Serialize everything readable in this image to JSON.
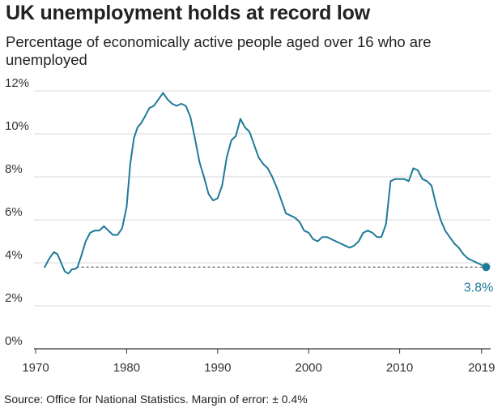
{
  "header": {
    "title": "UK unemployment holds at record low",
    "subtitle": "Percentage of economically active people aged over 16 who are unemployed"
  },
  "footer": {
    "source": "Source: Office for National Statistics. Margin of error: ± 0.4%"
  },
  "colors": {
    "line": "#1f7a99",
    "grid": "#d9d9d9",
    "axis": "#333333",
    "reference": "#333333"
  },
  "chart_data": {
    "type": "line",
    "title": "UK unemployment holds at record low",
    "subtitle": "Percentage of economically active people aged over 16 who are unemployed",
    "xlabel": "",
    "ylabel": "",
    "xlim": [
      1970,
      2020
    ],
    "ylim": [
      0,
      12
    ],
    "x_ticks": [
      1970,
      1980,
      1990,
      2000,
      2010,
      2019
    ],
    "x_tick_labels": [
      "1970",
      "1980",
      "1990",
      "2000",
      "2010",
      "2019"
    ],
    "y_ticks": [
      0,
      2,
      4,
      6,
      8,
      10,
      12
    ],
    "y_tick_labels": [
      "0%",
      "2%",
      "4%",
      "6%",
      "8%",
      "10%",
      "12%"
    ],
    "grid": "horizontal",
    "legend": "none",
    "series": [
      {
        "x": [
          1971.0,
          1971.5,
          1972.0,
          1972.4,
          1972.8,
          1973.2,
          1973.6,
          1974.0,
          1974.3,
          1974.6,
          1975.0,
          1975.5,
          1976.0,
          1976.5,
          1977.0,
          1977.5,
          1978.0,
          1978.5,
          1979.0,
          1979.5,
          1980.0,
          1980.4,
          1980.8,
          1981.2,
          1981.6,
          1982.0,
          1982.5,
          1983.0,
          1983.5,
          1984.0,
          1984.5,
          1985.0,
          1985.5,
          1986.0,
          1986.5,
          1987.0,
          1987.5,
          1988.0,
          1988.5,
          1989.0,
          1989.5,
          1990.0,
          1990.5,
          1991.0,
          1991.5,
          1992.0,
          1992.5,
          1993.0,
          1993.5,
          1994.0,
          1994.5,
          1995.0,
          1995.5,
          1996.0,
          1996.5,
          1997.0,
          1997.5,
          1998.0,
          1998.5,
          1999.0,
          1999.5,
          2000.0,
          2000.5,
          2001.0,
          2001.5,
          2002.0,
          2002.5,
          2003.0,
          2003.5,
          2004.0,
          2004.5,
          2005.0,
          2005.5,
          2006.0,
          2006.5,
          2007.0,
          2007.5,
          2008.0,
          2008.5,
          2009.0,
          2009.5,
          2010.0,
          2010.5,
          2011.0,
          2011.5,
          2012.0,
          2012.5,
          2013.0,
          2013.5,
          2014.0,
          2014.5,
          2015.0,
          2015.5,
          2016.0,
          2016.5,
          2017.0,
          2017.5,
          2018.0,
          2018.5,
          2019.0,
          2019.5
        ],
        "y": [
          3.8,
          4.2,
          4.5,
          4.4,
          4.0,
          3.6,
          3.5,
          3.7,
          3.7,
          3.8,
          4.3,
          5.0,
          5.4,
          5.5,
          5.5,
          5.7,
          5.5,
          5.3,
          5.3,
          5.6,
          6.6,
          8.6,
          9.8,
          10.3,
          10.5,
          10.8,
          11.2,
          11.3,
          11.6,
          11.9,
          11.6,
          11.4,
          11.3,
          11.4,
          11.3,
          10.8,
          9.8,
          8.7,
          8.0,
          7.2,
          6.9,
          7.0,
          7.6,
          8.9,
          9.7,
          9.9,
          10.7,
          10.3,
          10.1,
          9.5,
          8.9,
          8.6,
          8.4,
          8.0,
          7.5,
          6.9,
          6.3,
          6.2,
          6.1,
          5.9,
          5.5,
          5.4,
          5.1,
          5.0,
          5.2,
          5.2,
          5.1,
          5.0,
          4.9,
          4.8,
          4.7,
          4.8,
          5.0,
          5.4,
          5.5,
          5.4,
          5.2,
          5.2,
          5.8,
          7.8,
          7.9,
          7.9,
          7.9,
          7.8,
          8.4,
          8.3,
          7.9,
          7.8,
          7.6,
          6.7,
          6.0,
          5.5,
          5.2,
          4.9,
          4.7,
          4.4,
          4.2,
          4.1,
          4.0,
          3.9,
          3.8
        ]
      }
    ],
    "annotations": [
      {
        "label": "3.8%",
        "x": 2019.5,
        "y": 3.8,
        "reference_line": "dashed horizontal at 3.8% from 1974.5 to 2019.5"
      }
    ]
  }
}
